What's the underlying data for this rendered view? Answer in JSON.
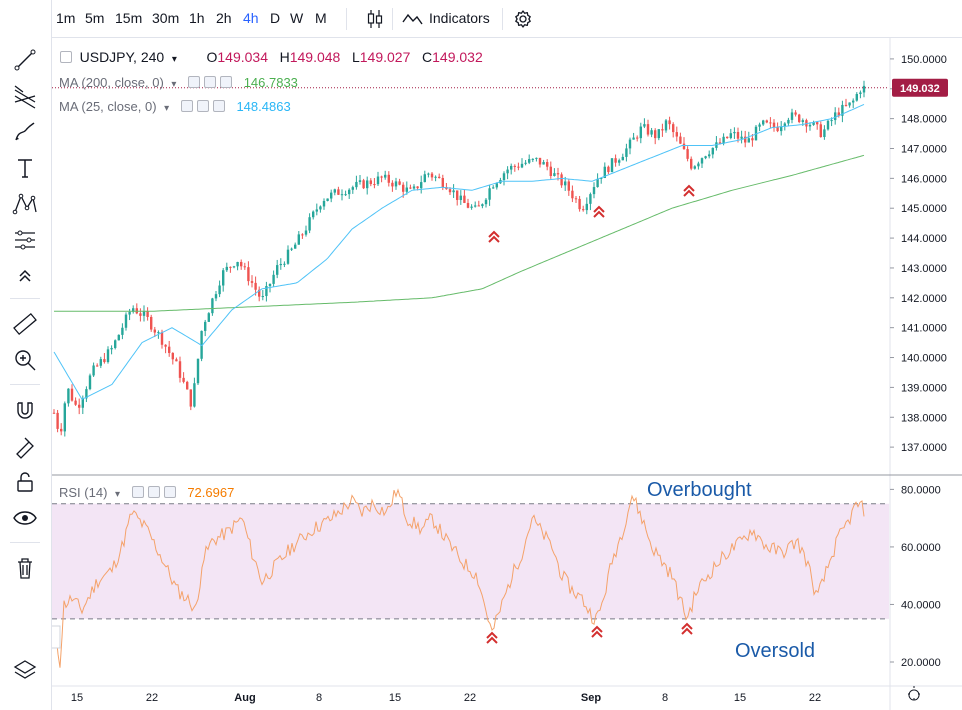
{
  "toolbar": {
    "intervals": [
      "1m",
      "5m",
      "15m",
      "30m",
      "1h",
      "2h",
      "4h",
      "D",
      "W",
      "M"
    ],
    "active_interval": "4h",
    "indicators_label": "Indicators"
  },
  "legend": {
    "symbol": "USDJPY, 240",
    "open_label": "O",
    "open": "149.034",
    "high_label": "H",
    "high": "149.048",
    "low_label": "L",
    "low": "149.027",
    "close_label": "C",
    "close": "149.032",
    "ma200_label": "MA (200, close, 0)",
    "ma200_value": "146.7833",
    "ma25_label": "MA (25, close, 0)",
    "ma25_value": "148.4863",
    "rsi_label": "RSI (14)",
    "rsi_value": "72.6967"
  },
  "colors": {
    "up": "#26a69a",
    "down": "#ef5350",
    "ma200": "#66bb6a",
    "ma25": "#4fc3f7",
    "rsi": "#f4a26a",
    "rsi_band": "#f3e5f5",
    "price_tag": "#a31d45",
    "arrow": "#d32f2f",
    "annotation": "#1a5aa8"
  },
  "annotations": {
    "overbought": "Overbought",
    "oversold": "Oversold"
  },
  "price_tag": "149.032",
  "chart_data": {
    "type": "candlestick",
    "symbol": "USDJPY",
    "interval": "240",
    "x_tick_labels": [
      "15",
      "22",
      "Aug",
      "8",
      "15",
      "22",
      "Sep",
      "8",
      "15",
      "22"
    ],
    "y_tick_labels": [
      "150.0000",
      "149.0000",
      "148.0000",
      "147.0000",
      "146.0000",
      "145.0000",
      "144.0000",
      "143.0000",
      "142.0000",
      "141.0000",
      "140.0000",
      "139.0000",
      "138.0000",
      "137.0000"
    ],
    "ylim": [
      136.1,
      150.7
    ],
    "last_close": 149.032,
    "price_waypoints": [
      [
        0,
        138.4
      ],
      [
        8,
        137.4
      ],
      [
        15,
        139.0
      ],
      [
        25,
        138.3
      ],
      [
        40,
        139.5
      ],
      [
        60,
        140.3
      ],
      [
        80,
        141.7
      ],
      [
        95,
        141.3
      ],
      [
        110,
        140.6
      ],
      [
        125,
        139.7
      ],
      [
        140,
        138.4
      ],
      [
        150,
        141.0
      ],
      [
        170,
        142.8
      ],
      [
        185,
        143.3
      ],
      [
        200,
        142.5
      ],
      [
        210,
        141.9
      ],
      [
        225,
        143.0
      ],
      [
        240,
        143.6
      ],
      [
        255,
        144.4
      ],
      [
        270,
        145.3
      ],
      [
        290,
        145.6
      ],
      [
        310,
        145.8
      ],
      [
        330,
        146.0
      ],
      [
        345,
        145.8
      ],
      [
        360,
        145.5
      ],
      [
        375,
        146.2
      ],
      [
        395,
        145.8
      ],
      [
        410,
        145.2
      ],
      [
        425,
        144.9
      ],
      [
        440,
        145.8
      ],
      [
        455,
        146.3
      ],
      [
        470,
        146.5
      ],
      [
        485,
        146.6
      ],
      [
        495,
        146.4
      ],
      [
        505,
        146.0
      ],
      [
        515,
        145.7
      ],
      [
        530,
        145.0
      ],
      [
        545,
        146.0
      ],
      [
        560,
        146.5
      ],
      [
        575,
        147.0
      ],
      [
        590,
        147.7
      ],
      [
        605,
        147.4
      ],
      [
        615,
        147.9
      ],
      [
        625,
        147.3
      ],
      [
        640,
        146.4
      ],
      [
        655,
        146.9
      ],
      [
        670,
        147.2
      ],
      [
        680,
        147.5
      ],
      [
        695,
        147.2
      ],
      [
        710,
        147.8
      ],
      [
        725,
        147.7
      ],
      [
        735,
        148.1
      ],
      [
        750,
        148.0
      ],
      [
        760,
        147.8
      ],
      [
        770,
        147.5
      ],
      [
        785,
        148.2
      ],
      [
        800,
        148.5
      ],
      [
        808,
        149.0
      ],
      [
        813,
        149.03
      ]
    ],
    "ma25_waypoints": [
      [
        0,
        140.3
      ],
      [
        30,
        138.6
      ],
      [
        60,
        139.1
      ],
      [
        90,
        140.5
      ],
      [
        120,
        141.0
      ],
      [
        150,
        140.4
      ],
      [
        180,
        141.6
      ],
      [
        210,
        142.3
      ],
      [
        245,
        142.5
      ],
      [
        275,
        143.3
      ],
      [
        300,
        144.3
      ],
      [
        330,
        145.0
      ],
      [
        360,
        145.6
      ],
      [
        390,
        145.7
      ],
      [
        420,
        145.6
      ],
      [
        450,
        145.9
      ],
      [
        480,
        145.9
      ],
      [
        510,
        146.0
      ],
      [
        540,
        145.9
      ],
      [
        570,
        146.3
      ],
      [
        600,
        146.7
      ],
      [
        630,
        147.1
      ],
      [
        660,
        147.1
      ],
      [
        690,
        147.3
      ],
      [
        720,
        147.7
      ],
      [
        750,
        147.8
      ],
      [
        780,
        148.0
      ],
      [
        813,
        148.49
      ]
    ],
    "ma200_waypoints": [
      [
        0,
        141.55
      ],
      [
        100,
        141.55
      ],
      [
        200,
        141.7
      ],
      [
        300,
        141.85
      ],
      [
        380,
        142.0
      ],
      [
        430,
        142.3
      ],
      [
        470,
        142.9
      ],
      [
        520,
        143.6
      ],
      [
        570,
        144.3
      ],
      [
        620,
        145.0
      ],
      [
        680,
        145.6
      ],
      [
        740,
        146.1
      ],
      [
        813,
        146.78
      ]
    ],
    "rsi": {
      "name": "RSI (14)",
      "y_tick_labels": [
        "80.0000",
        "60.0000",
        "40.0000",
        "20.0000"
      ],
      "ylim": [
        12,
        85
      ],
      "upper_band": 75,
      "lower_band": 35,
      "last": 72.6967,
      "waypoints": [
        [
          0,
          35
        ],
        [
          8,
          20
        ],
        [
          12,
          40
        ],
        [
          20,
          42
        ],
        [
          30,
          38
        ],
        [
          45,
          48
        ],
        [
          60,
          52
        ],
        [
          70,
          60
        ],
        [
          80,
          72
        ],
        [
          95,
          66
        ],
        [
          110,
          56
        ],
        [
          125,
          45
        ],
        [
          135,
          42
        ],
        [
          145,
          38
        ],
        [
          150,
          55
        ],
        [
          160,
          62
        ],
        [
          175,
          65
        ],
        [
          190,
          70
        ],
        [
          200,
          58
        ],
        [
          210,
          48
        ],
        [
          220,
          52
        ],
        [
          240,
          60
        ],
        [
          260,
          66
        ],
        [
          280,
          70
        ],
        [
          300,
          76
        ],
        [
          310,
          72
        ],
        [
          320,
          75
        ],
        [
          335,
          72
        ],
        [
          345,
          80
        ],
        [
          355,
          70
        ],
        [
          370,
          66
        ],
        [
          380,
          70
        ],
        [
          395,
          62
        ],
        [
          410,
          55
        ],
        [
          425,
          50
        ],
        [
          440,
          30
        ],
        [
          450,
          40
        ],
        [
          460,
          50
        ],
        [
          470,
          58
        ],
        [
          480,
          70
        ],
        [
          490,
          65
        ],
        [
          500,
          60
        ],
        [
          510,
          50
        ],
        [
          520,
          45
        ],
        [
          530,
          42
        ],
        [
          540,
          36
        ],
        [
          545,
          35
        ],
        [
          550,
          40
        ],
        [
          560,
          55
        ],
        [
          570,
          65
        ],
        [
          580,
          78
        ],
        [
          590,
          70
        ],
        [
          600,
          60
        ],
        [
          610,
          55
        ],
        [
          620,
          50
        ],
        [
          630,
          40
        ],
        [
          635,
          35
        ],
        [
          645,
          45
        ],
        [
          660,
          52
        ],
        [
          675,
          58
        ],
        [
          690,
          62
        ],
        [
          700,
          66
        ],
        [
          715,
          60
        ],
        [
          730,
          58
        ],
        [
          745,
          62
        ],
        [
          755,
          55
        ],
        [
          765,
          42
        ],
        [
          775,
          52
        ],
        [
          785,
          62
        ],
        [
          795,
          68
        ],
        [
          805,
          75
        ],
        [
          813,
          72.7
        ]
      ]
    },
    "signals_at": [
      440,
      545,
      635
    ]
  }
}
